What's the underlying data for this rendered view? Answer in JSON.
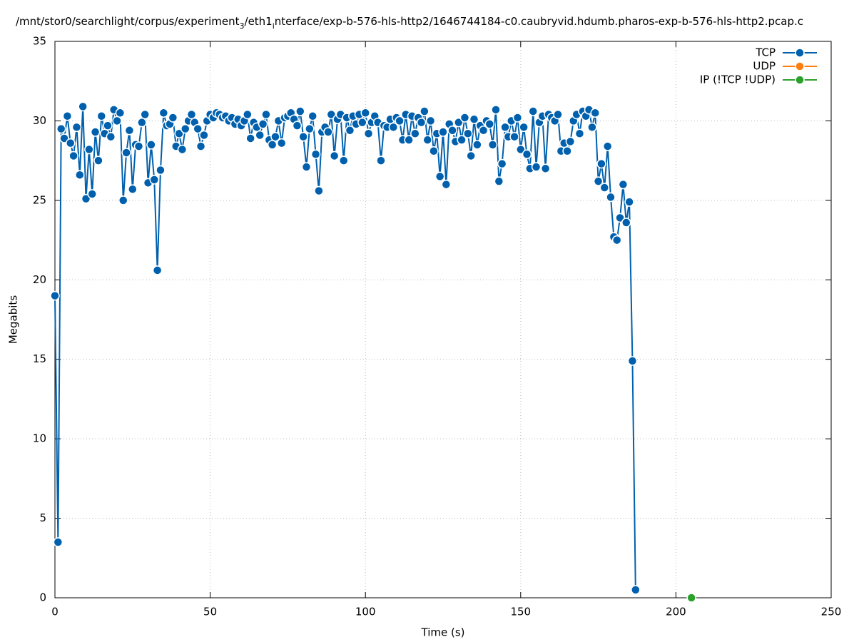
{
  "chart_data": {
    "type": "line",
    "title": [
      "/mnt/stor0/searchlight/corpus/experiment",
      "3",
      "/eth1",
      "i",
      "nterface/exp-b-576-hls-http2/1646744184-c0.caubryvid.hdumb.pharos-exp-b-576-hls-http2.pcap.c"
    ],
    "x_label": "Time (s)",
    "y_label": "Megabits",
    "xlim": [
      0,
      250
    ],
    "ylim": [
      0,
      35
    ],
    "xticks": [
      0,
      50,
      100,
      150,
      200,
      250
    ],
    "yticks": [
      0,
      5,
      10,
      15,
      20,
      25,
      30,
      35
    ],
    "grid": true,
    "legend": "top-right",
    "series": [
      {
        "name": "TCP",
        "color": "#0060ad",
        "x": [
          0,
          1,
          2,
          3,
          4,
          5,
          6,
          7,
          8,
          9,
          10,
          11,
          12,
          13,
          14,
          15,
          16,
          17,
          18,
          19,
          20,
          21,
          22,
          23,
          24,
          25,
          26,
          27,
          28,
          29,
          30,
          31,
          32,
          33,
          34,
          35,
          36,
          37,
          38,
          39,
          40,
          41,
          42,
          43,
          44,
          45,
          46,
          47,
          48,
          49,
          50,
          51,
          52,
          53,
          54,
          55,
          56,
          57,
          58,
          59,
          60,
          61,
          62,
          63,
          64,
          65,
          66,
          67,
          68,
          69,
          70,
          71,
          72,
          73,
          74,
          75,
          76,
          77,
          78,
          79,
          80,
          81,
          82,
          83,
          84,
          85,
          86,
          87,
          88,
          89,
          90,
          91,
          92,
          93,
          94,
          95,
          96,
          97,
          98,
          99,
          100,
          101,
          102,
          103,
          104,
          105,
          106,
          107,
          108,
          109,
          110,
          111,
          112,
          113,
          114,
          115,
          116,
          117,
          118,
          119,
          120,
          121,
          122,
          123,
          124,
          125,
          126,
          127,
          128,
          129,
          130,
          131,
          132,
          133,
          134,
          135,
          136,
          137,
          138,
          139,
          140,
          141,
          142,
          143,
          144,
          145,
          146,
          147,
          148,
          149,
          150,
          151,
          152,
          153,
          154,
          155,
          156,
          157,
          158,
          159,
          160,
          161,
          162,
          163,
          164,
          165,
          166,
          167,
          168,
          169,
          170,
          171,
          172,
          173,
          174,
          175,
          176,
          177,
          178,
          179,
          180,
          181,
          182,
          183,
          184,
          185,
          186,
          187
        ],
        "values": [
          19,
          3.5,
          29.5,
          28.9,
          30.3,
          28.6,
          27.8,
          29.6,
          26.6,
          30.9,
          25.1,
          28.2,
          25.4,
          29.3,
          27.5,
          30.3,
          29.2,
          29.7,
          29,
          30.7,
          30,
          30.5,
          25,
          28,
          29.4,
          25.7,
          28.5,
          28.4,
          29.9,
          30.4,
          26.1,
          28.5,
          26.3,
          20.6,
          26.9,
          30.5,
          29.7,
          29.8,
          30.2,
          28.4,
          29.2,
          28.2,
          29.5,
          30,
          30.4,
          29.9,
          29.5,
          28.4,
          29.1,
          30,
          30.4,
          30.2,
          30.5,
          30.4,
          30.2,
          30.3,
          30,
          30.2,
          29.8,
          30.1,
          29.7,
          30,
          30.4,
          28.9,
          29.9,
          29.6,
          29.1,
          29.8,
          30.4,
          28.8,
          28.5,
          29,
          30,
          28.6,
          30.2,
          30.3,
          30.5,
          30.1,
          29.7,
          30.6,
          29,
          27.1,
          29.5,
          30.3,
          27.9,
          25.6,
          29.3,
          29.6,
          29.3,
          30.4,
          27.8,
          30.1,
          30.4,
          27.5,
          30.2,
          29.4,
          30.3,
          29.8,
          30.4,
          29.9,
          30.5,
          29.2,
          29.9,
          30.3,
          29.9,
          27.5,
          29.7,
          29.6,
          30.1,
          29.6,
          30.2,
          30,
          28.8,
          30.4,
          28.8,
          30.3,
          29.2,
          30.2,
          29.9,
          30.6,
          28.8,
          30,
          28.1,
          29.2,
          26.5,
          29.3,
          26,
          29.8,
          29.4,
          28.7,
          29.9,
          28.8,
          30.2,
          29.2,
          27.8,
          30.1,
          28.5,
          29.7,
          29.4,
          30,
          29.8,
          28.5,
          30.7,
          26.2,
          27.3,
          29.6,
          29,
          30,
          29,
          30.2,
          28.2,
          29.6,
          27.9,
          27,
          30.6,
          27.1,
          29.9,
          30.3,
          27,
          30.4,
          30.2,
          30,
          30.4,
          28.1,
          28.6,
          28.1,
          28.7,
          30,
          30.4,
          29.2,
          30.6,
          30.3,
          30.7,
          29.6,
          30.5,
          26.2,
          27.3,
          25.8,
          28.4,
          25.2,
          22.7,
          22.5,
          23.9,
          26,
          23.6,
          24.9,
          14.9,
          0.5
        ]
      },
      {
        "name": "UDP",
        "color": "#ff7f0e",
        "x": [],
        "values": []
      },
      {
        "name": "IP (!TCP  !UDP)",
        "color": "#2ca02c",
        "x": [
          205
        ],
        "values": [
          0
        ]
      }
    ]
  }
}
